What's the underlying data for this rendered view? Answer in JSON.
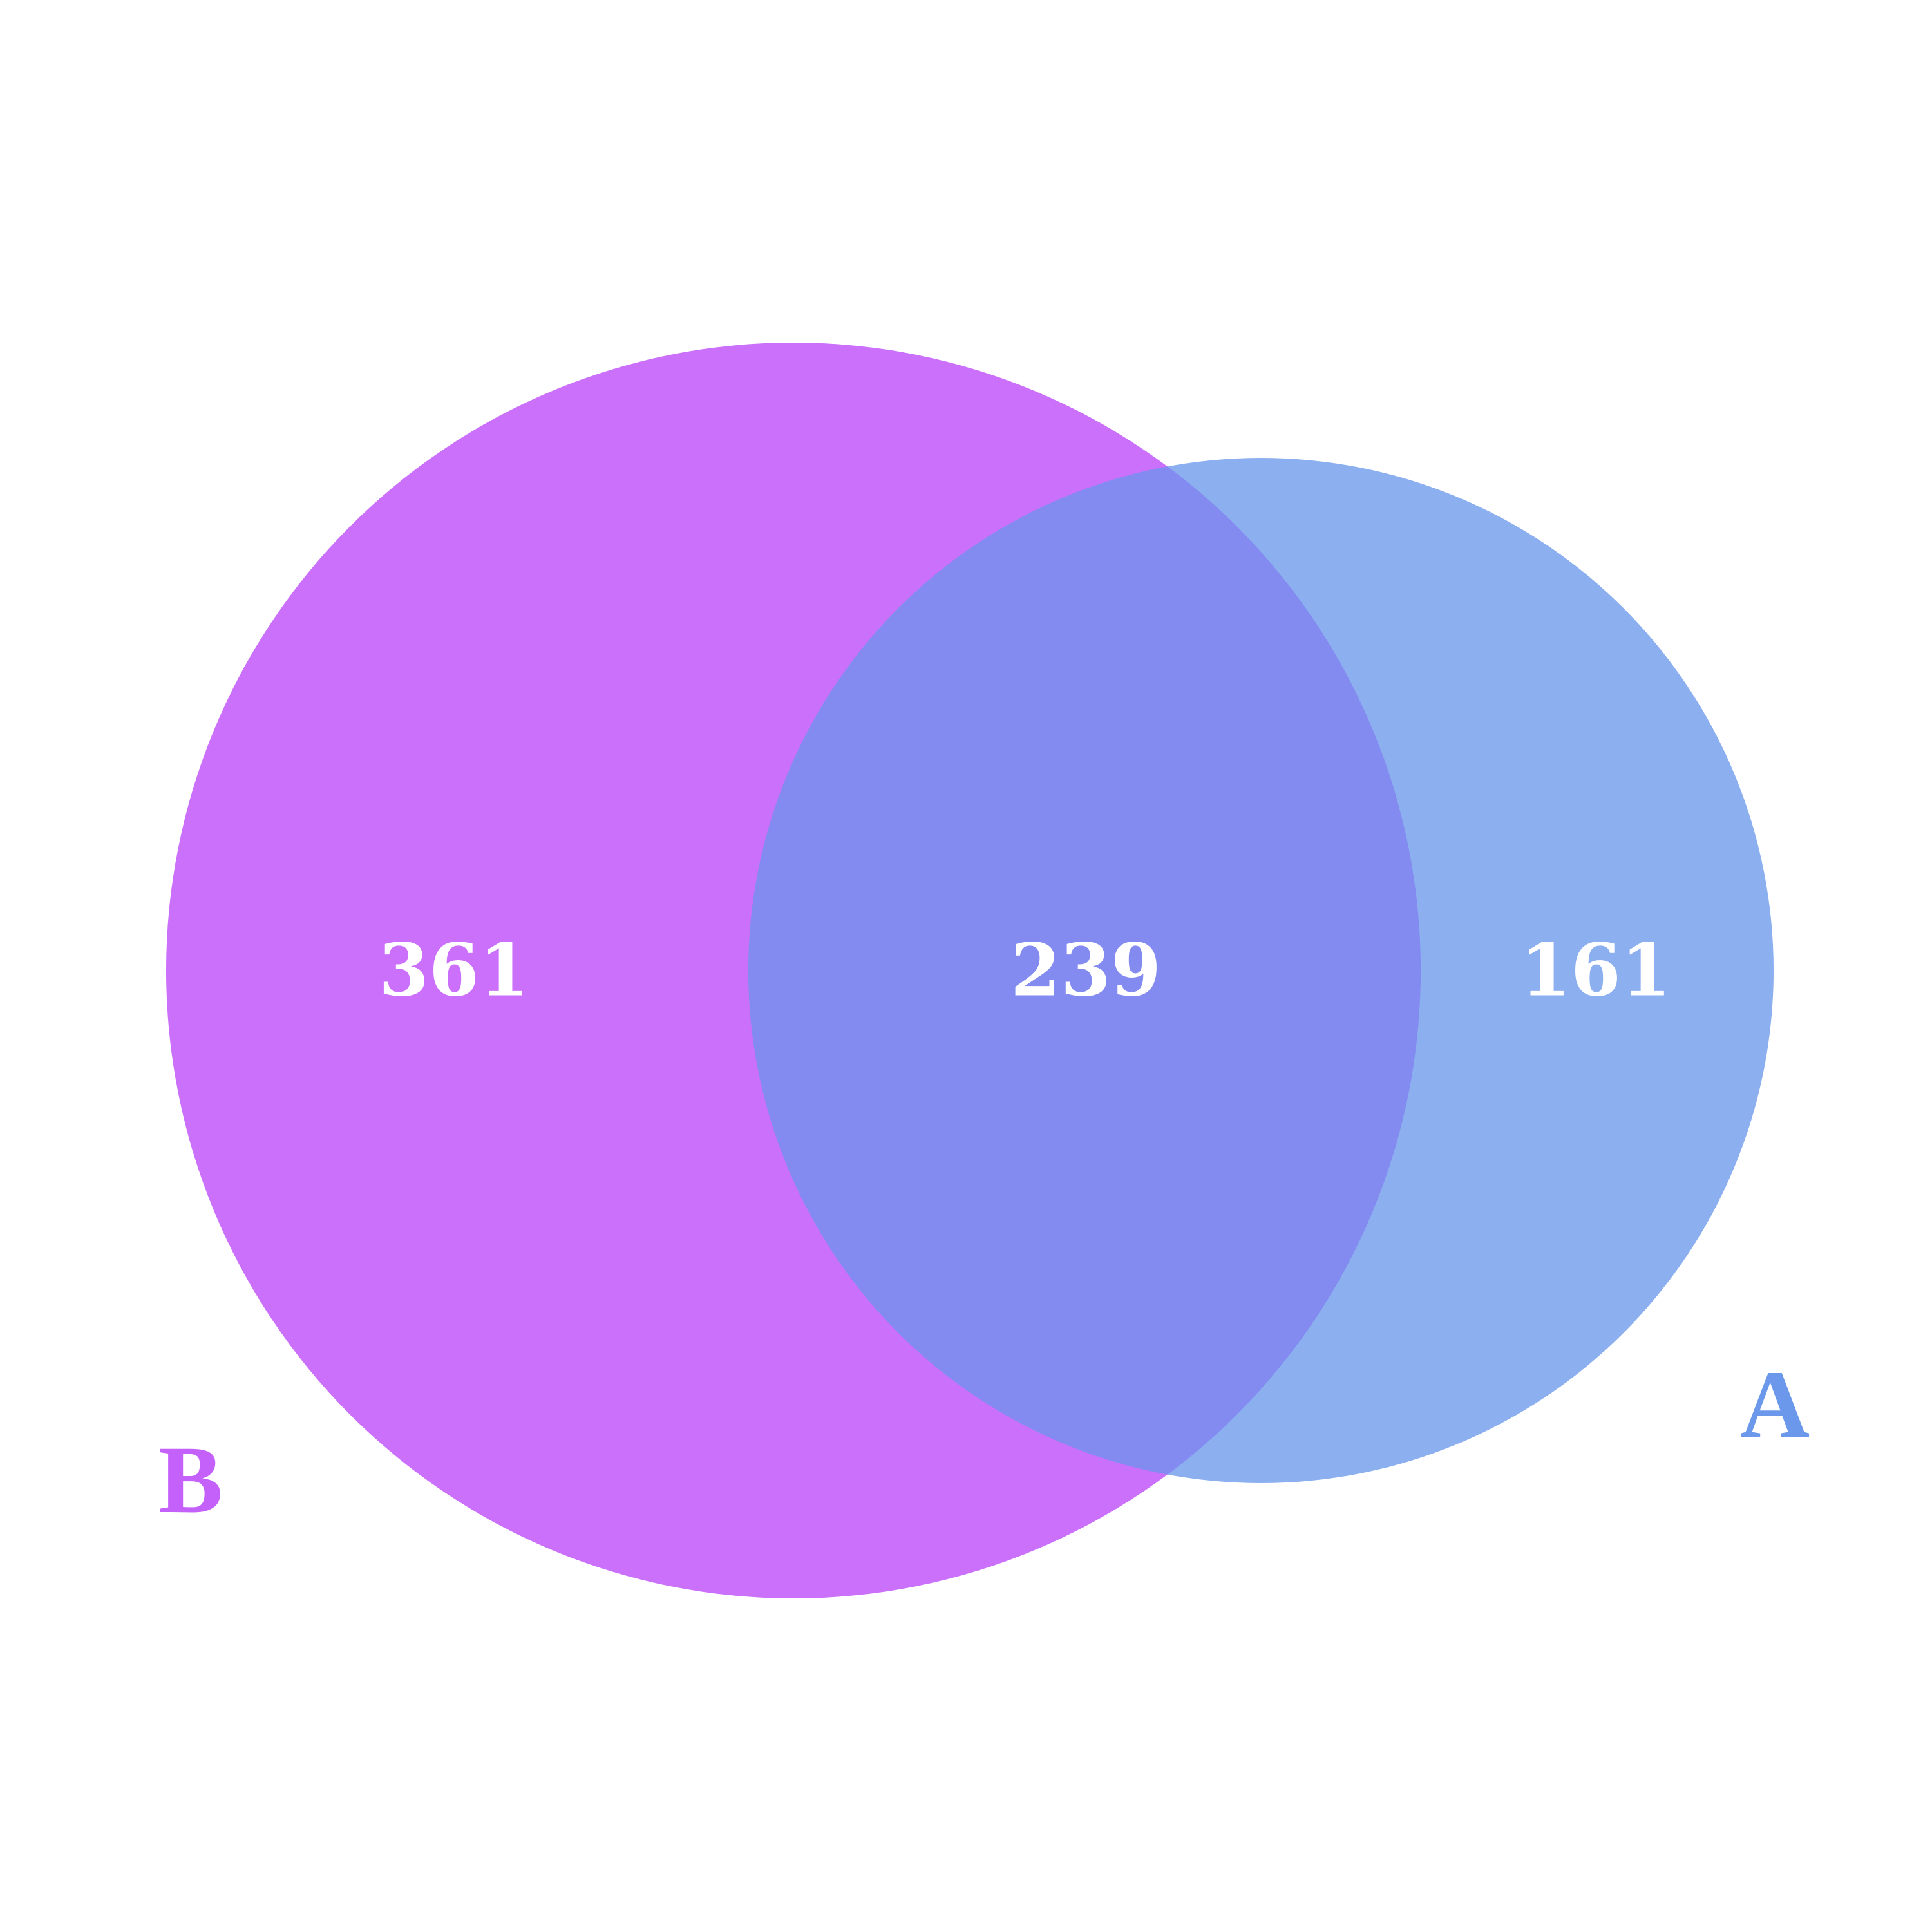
{
  "colors": {
    "set_b": "#c561fb",
    "set_a": "#6b98ea",
    "overlap": "#838bf0",
    "count_text": "#ffffff",
    "background": "#ffffff"
  },
  "sets": {
    "b": {
      "label": "B",
      "only_count": "361",
      "size": 600
    },
    "a": {
      "label": "A",
      "only_count": "161",
      "size": 400
    }
  },
  "intersection": {
    "count": "239"
  }
}
